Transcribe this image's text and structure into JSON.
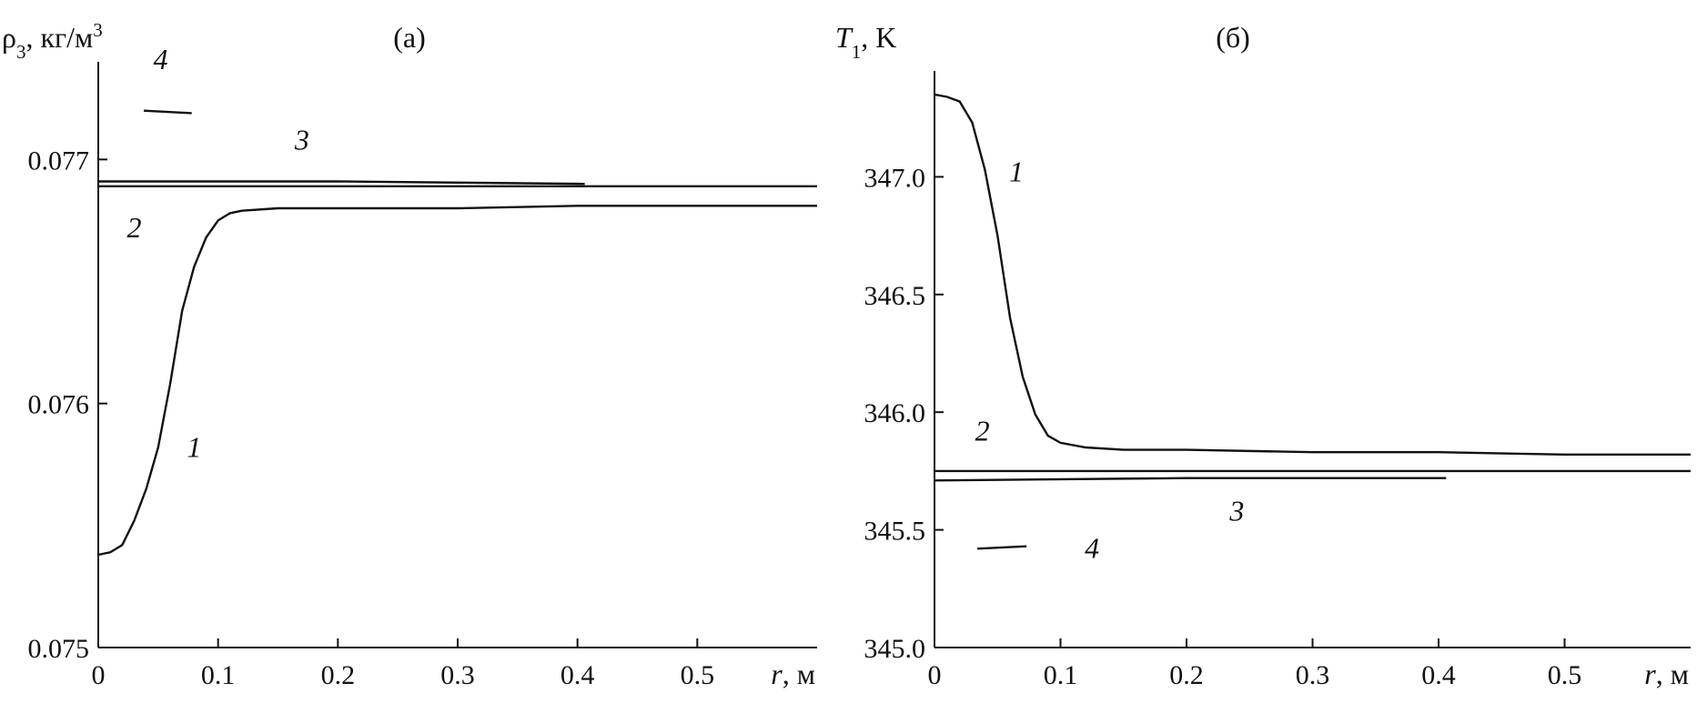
{
  "chart_data": [
    {
      "type": "line",
      "panel": "(а)",
      "ylabel": {
        "sym": "ρ",
        "sub": "3",
        "unit": ", кг/м",
        "sup": "3"
      },
      "xlabel": {
        "sym": "r",
        "unit": ", м"
      },
      "xlim": [
        0,
        0.6
      ],
      "ylim": [
        0.075,
        0.0774
      ],
      "xticks": [
        {
          "v": 0,
          "label": "0"
        },
        {
          "v": 0.1,
          "label": "0.1"
        },
        {
          "v": 0.2,
          "label": "0.2"
        },
        {
          "v": 0.3,
          "label": "0.3"
        },
        {
          "v": 0.4,
          "label": "0.4"
        },
        {
          "v": 0.5,
          "label": "0.5"
        }
      ],
      "yticks": [
        {
          "v": 0.075,
          "label": "0.075"
        },
        {
          "v": 0.076,
          "label": "0.076"
        },
        {
          "v": 0.077,
          "label": "0.077"
        }
      ],
      "series": [
        {
          "label": "1",
          "label_pos": [
            0.08,
            0.07578
          ],
          "points": [
            [
              0,
              0.07538
            ],
            [
              0.01,
              0.07539
            ],
            [
              0.02,
              0.07542
            ],
            [
              0.03,
              0.07552
            ],
            [
              0.04,
              0.07565
            ],
            [
              0.05,
              0.07582
            ],
            [
              0.06,
              0.07608
            ],
            [
              0.07,
              0.07638
            ],
            [
              0.08,
              0.07656
            ],
            [
              0.09,
              0.07668
            ],
            [
              0.1,
              0.07675
            ],
            [
              0.11,
              0.07678
            ],
            [
              0.12,
              0.07679
            ],
            [
              0.15,
              0.0768
            ],
            [
              0.2,
              0.0768
            ],
            [
              0.3,
              0.0768
            ],
            [
              0.4,
              0.07681
            ],
            [
              0.5,
              0.07681
            ],
            [
              0.6,
              0.07681
            ]
          ]
        },
        {
          "label": "2",
          "label_pos": [
            0.03,
            0.07668
          ],
          "points": [
            [
              0,
              0.07689
            ],
            [
              0.6,
              0.07689
            ]
          ]
        },
        {
          "label": "3",
          "label_pos": [
            0.17,
            0.07704
          ],
          "points": [
            [
              0,
              0.07691
            ],
            [
              0.2,
              0.07691
            ],
            [
              0.406,
              0.0769
            ]
          ]
        },
        {
          "label": "4",
          "label_pos": [
            0.052,
            0.07737
          ],
          "points": [
            [
              0.038,
              0.0772
            ],
            [
              0.078,
              0.07719
            ]
          ]
        }
      ]
    },
    {
      "type": "line",
      "panel": "(б)",
      "ylabel": {
        "sym": "T",
        "sub": "1",
        "unit": ", K"
      },
      "xlabel": {
        "sym": "r",
        "unit": ", м"
      },
      "xlim": [
        0,
        0.6
      ],
      "ylim": [
        345.0,
        347.45
      ],
      "xticks": [
        {
          "v": 0,
          "label": "0"
        },
        {
          "v": 0.1,
          "label": "0.1"
        },
        {
          "v": 0.2,
          "label": "0.2"
        },
        {
          "v": 0.3,
          "label": "0.3"
        },
        {
          "v": 0.4,
          "label": "0.4"
        },
        {
          "v": 0.5,
          "label": "0.5"
        }
      ],
      "yticks": [
        {
          "v": 345.0,
          "label": "345.0"
        },
        {
          "v": 345.5,
          "label": "345.5"
        },
        {
          "v": 346.0,
          "label": "346.0"
        },
        {
          "v": 346.5,
          "label": "346.5"
        },
        {
          "v": 347.0,
          "label": "347.0"
        }
      ],
      "series": [
        {
          "label": "1",
          "label_pos": [
            0.065,
            346.98
          ],
          "points": [
            [
              0,
              347.35
            ],
            [
              0.01,
              347.34
            ],
            [
              0.02,
              347.32
            ],
            [
              0.03,
              347.23
            ],
            [
              0.04,
              347.03
            ],
            [
              0.05,
              346.75
            ],
            [
              0.06,
              346.4
            ],
            [
              0.07,
              346.15
            ],
            [
              0.08,
              345.99
            ],
            [
              0.09,
              345.9
            ],
            [
              0.1,
              345.87
            ],
            [
              0.12,
              345.85
            ],
            [
              0.15,
              345.84
            ],
            [
              0.2,
              345.84
            ],
            [
              0.3,
              345.83
            ],
            [
              0.4,
              345.83
            ],
            [
              0.5,
              345.82
            ],
            [
              0.6,
              345.82
            ]
          ]
        },
        {
          "label": "2",
          "label_pos": [
            0.038,
            345.88
          ],
          "points": [
            [
              0,
              345.75
            ],
            [
              0.6,
              345.75
            ]
          ]
        },
        {
          "label": "3",
          "label_pos": [
            0.24,
            345.54
          ],
          "points": [
            [
              0,
              345.71
            ],
            [
              0.2,
              345.72
            ],
            [
              0.406,
              345.72
            ]
          ]
        },
        {
          "label": "4",
          "label_pos": [
            0.125,
            345.38
          ],
          "points": [
            [
              0.034,
              345.42
            ],
            [
              0.073,
              345.43
            ]
          ]
        }
      ]
    }
  ]
}
